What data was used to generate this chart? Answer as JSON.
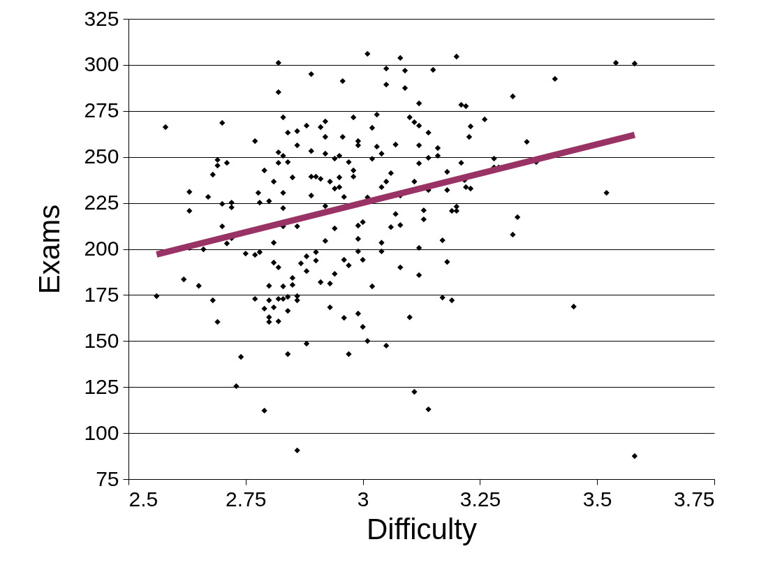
{
  "chart_data": {
    "type": "scatter",
    "xlabel": "Difficulty",
    "ylabel": "Exams",
    "xlim": [
      2.5,
      3.75
    ],
    "xticks": [
      2.5,
      2.75,
      3,
      3.25,
      3.5,
      3.75
    ],
    "ylim": [
      75,
      325
    ],
    "yticks": [
      75,
      100,
      125,
      150,
      175,
      200,
      225,
      250,
      275,
      300,
      325
    ],
    "grid": "y",
    "series": [
      {
        "type": "scatter",
        "color": "#000000",
        "marker": "diamond",
        "x": [
          2.56,
          2.579,
          2.618,
          2.63,
          2.63,
          2.63,
          2.65,
          2.66,
          2.67,
          2.68,
          2.68,
          2.69,
          2.69,
          2.69,
          2.7,
          2.7,
          2.7,
          2.71,
          2.71,
          2.72,
          2.72,
          2.72,
          2.73,
          2.74,
          2.75,
          2.77,
          2.77,
          2.77,
          2.777,
          2.78,
          2.78,
          2.79,
          2.79,
          2.79,
          2.8,
          2.8,
          2.8,
          2.8,
          2.8,
          2.81,
          2.81,
          2.81,
          2.81,
          2.82,
          2.82,
          2.82,
          2.82,
          2.82,
          2.82,
          2.82,
          2.83,
          2.83,
          2.83,
          2.83,
          2.83,
          2.83,
          2.83,
          2.84,
          2.84,
          2.84,
          2.84,
          2.84,
          2.85,
          2.85,
          2.85,
          2.86,
          2.86,
          2.86,
          2.86,
          2.86,
          2.86,
          2.868,
          2.88,
          2.88,
          2.88,
          2.88,
          2.89,
          2.89,
          2.89,
          2.89,
          2.9,
          2.9,
          2.9,
          2.91,
          2.91,
          2.91,
          2.92,
          2.92,
          2.92,
          2.92,
          2.92,
          2.93,
          2.93,
          2.93,
          2.94,
          2.94,
          2.94,
          2.94,
          2.95,
          2.95,
          2.95,
          2.957,
          2.957,
          2.96,
          2.96,
          2.96,
          2.97,
          2.97,
          2.97,
          2.98,
          2.98,
          2.98,
          2.99,
          2.99,
          2.99,
          2.99,
          2.99,
          2.99,
          3,
          3,
          3,
          3.01,
          3.01,
          3.01,
          3.02,
          3.02,
          3.02,
          3.03,
          3.03,
          3.04,
          3.04,
          3.04,
          3.04,
          3.05,
          3.05,
          3.05,
          3.05,
          3.06,
          3.06,
          3.07,
          3.07,
          3.08,
          3.08,
          3.08,
          3.08,
          3.09,
          3.09,
          3.1,
          3.1,
          3.11,
          3.11,
          3.11,
          3.12,
          3.12,
          3.12,
          3.12,
          3.12,
          3.12,
          3.13,
          3.13,
          3.14,
          3.14,
          3.14,
          3.14,
          3.15,
          3.16,
          3.16,
          3.17,
          3.17,
          3.18,
          3.18,
          3.18,
          3.19,
          3.19,
          3.2,
          3.2,
          3.2,
          3.21,
          3.21,
          3.217,
          3.22,
          3.22,
          3.227,
          3.23,
          3.23,
          3.26,
          3.28,
          3.28,
          3.29,
          3.32,
          3.32,
          3.33,
          3.35,
          3.37,
          3.41,
          3.45,
          3.52,
          3.54,
          3.58,
          3.58
        ],
        "values": [
          174.4,
          266.2,
          183.5,
          231,
          220.7,
          200.6,
          180,
          199.8,
          228.3,
          240.4,
          172.1,
          160.4,
          245.3,
          248.4,
          268.5,
          224.5,
          212.3,
          246.8,
          203,
          225.2,
          222.6,
          205.9,
          125.5,
          141.4,
          197.5,
          258.6,
          196.8,
          172.9,
          230.5,
          225.2,
          198.3,
          112.2,
          242.7,
          167.6,
          226,
          180,
          162.9,
          160.4,
          172.1,
          192.6,
          203.4,
          236.6,
          168.3,
          301.1,
          285.2,
          252.5,
          246.8,
          190,
          160.7,
          172.9,
          212.3,
          271.5,
          250.6,
          230.5,
          222.2,
          179.7,
          172.9,
          247.2,
          263.2,
          174,
          166.4,
          142.9,
          238.9,
          184.3,
          180.5,
          264,
          256.3,
          212.3,
          174.4,
          172.1,
          90.6,
          192.2,
          196,
          267,
          188,
          148.6,
          295,
          253.2,
          239.3,
          229,
          198.3,
          193.7,
          239.3,
          266.2,
          182,
          238.1,
          260.9,
          269.3,
          251.8,
          223.3,
          204.4,
          236.6,
          181.2,
          168.3,
          211.2,
          186.5,
          232.8,
          249.1,
          233.6,
          238.9,
          250.6,
          291.2,
          260.9,
          194.1,
          162.6,
          228.3,
          247.2,
          191.1,
          142.9,
          239.3,
          242.7,
          271.5,
          258.6,
          256.3,
          212.7,
          205.5,
          198.7,
          164.9,
          214.6,
          194.1,
          157.7,
          306,
          150,
          228,
          249,
          265.8,
          179.7,
          273,
          255.6,
          203.4,
          198.7,
          251.8,
          233.6,
          298,
          289.3,
          147.5,
          236.6,
          241.2,
          211.9,
          256.7,
          219,
          303.8,
          190,
          213,
          229,
          296.9,
          287.4,
          271.5,
          162.9,
          236.6,
          268.9,
          122.4,
          267,
          256.3,
          279.1,
          185.8,
          200.6,
          246.5,
          221,
          216.1,
          249.5,
          263.2,
          112.9,
          232,
          297.3,
          254.8,
          250.6,
          173.6,
          204.7,
          241.9,
          232,
          193,
          220.7,
          172.1,
          304.5,
          223,
          220.7,
          246.8,
          278.3,
          237.4,
          277.6,
          233.6,
          260.9,
          266.6,
          232.8,
          270.4,
          249.1,
          244.3,
          244.3,
          207.8,
          282.9,
          217.3,
          258.2,
          247.2,
          292.4,
          168.7,
          230.5,
          301.1,
          300.7,
          87.5
        ]
      },
      {
        "type": "line",
        "color": "#993366",
        "x": [
          2.56,
          3.58
        ],
        "values": [
          197,
          262
        ]
      }
    ]
  }
}
